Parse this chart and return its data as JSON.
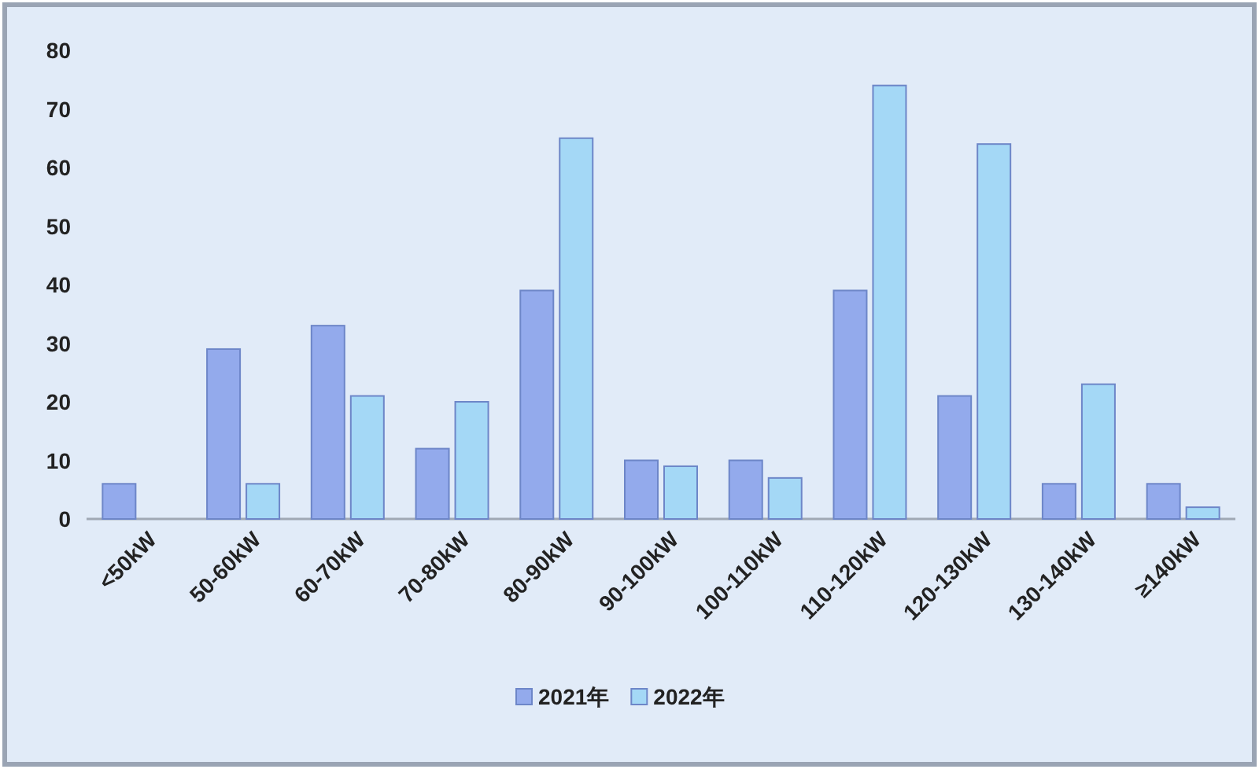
{
  "chart_data": {
    "type": "bar",
    "categories": [
      "<50kW",
      "50-60kW",
      "60-70kW",
      "70-80kW",
      "80-90kW",
      "90-100kW",
      "100-110kW",
      "110-120kW",
      "120-130kW",
      "130-140kW",
      "≥140kW"
    ],
    "series": [
      {
        "name": "2021年",
        "color": "#93aaec",
        "values": [
          6,
          29,
          33,
          12,
          39,
          10,
          10,
          39,
          21,
          6,
          6
        ]
      },
      {
        "name": "2022年",
        "color": "#a4d8f6",
        "values": [
          null,
          6,
          21,
          20,
          65,
          9,
          7,
          74,
          64,
          23,
          2
        ]
      }
    ],
    "ylim": [
      0,
      80
    ],
    "yticks": [
      0,
      10,
      20,
      30,
      40,
      50,
      60,
      70,
      80
    ],
    "grid": false,
    "legend": "bottom"
  }
}
